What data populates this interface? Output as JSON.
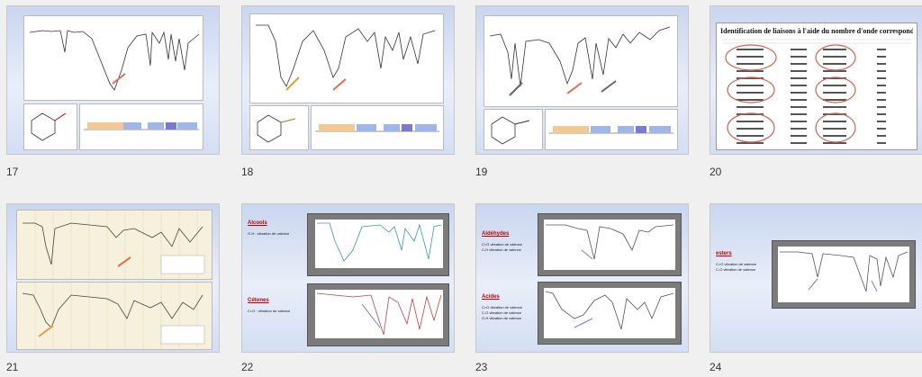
{
  "slides": [
    {
      "number": "17"
    },
    {
      "number": "18"
    },
    {
      "number": "19"
    },
    {
      "number": "20",
      "title": "Identification de liaisons à l'aide du nombre d'onde correspondant"
    },
    {
      "number": "21"
    },
    {
      "number": "22",
      "heading1": "Alcools",
      "line1": "O-H : vibration de valence",
      "heading2": "Cétones",
      "line2": "C=O : vibration de valence"
    },
    {
      "number": "23",
      "heading1": "Aldéhydes",
      "line1a": "C=O vibration de valence",
      "line1b": "C-H vibration de valence",
      "heading2": "Acides",
      "line2a": "C=O vibration de valence",
      "line2b": "C-O vibration de valence",
      "line2c": "O-H vibration de valence"
    },
    {
      "number": "24",
      "heading1": "esters",
      "line1a": "C=O vibration de valence",
      "line1b": "C-O vibration de valence"
    }
  ],
  "colors": {
    "accent": "#c00000",
    "arrow": "#e07050",
    "selection": "#c8c8c8"
  }
}
